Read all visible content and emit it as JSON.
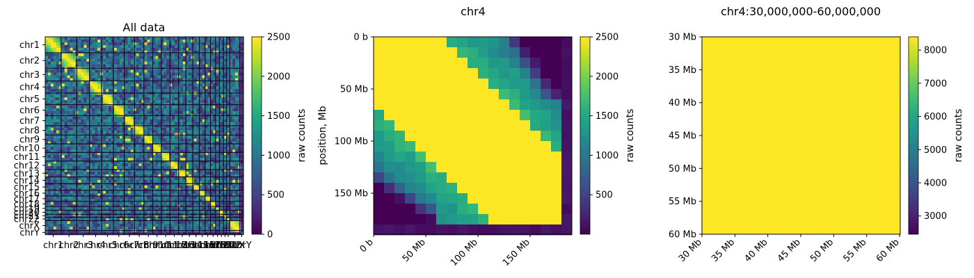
{
  "chart_data": [
    {
      "type": "heatmap",
      "title": "All data",
      "colorbar": {
        "label": "raw counts",
        "ticks": [
          0,
          500,
          1000,
          1500,
          2000,
          2500
        ],
        "range": [
          0,
          2500
        ]
      },
      "chromosomes": [
        "chr1",
        "chr2",
        "chr3",
        "chr4",
        "chr5",
        "chr6",
        "chr7",
        "chr8",
        "chr9",
        "chr10",
        "chr11",
        "chr12",
        "chr13",
        "chr14",
        "chr15",
        "chr16",
        "chr17",
        "chr18",
        "chr19",
        "chr20",
        "chr21",
        "chr22",
        "chrX",
        "chrY"
      ],
      "chrom_sizes_mb": [
        249,
        242,
        198,
        190,
        181,
        171,
        159,
        145,
        138,
        134,
        135,
        133,
        114,
        107,
        102,
        90,
        83,
        80,
        59,
        64,
        47,
        51,
        156,
        57
      ]
    },
    {
      "type": "heatmap",
      "title": "chr4",
      "ylabel": "position, Mb",
      "xticks": [
        "0 b",
        "50 Mb",
        "100 Mb",
        "150 Mb"
      ],
      "yticks": [
        "0 b",
        "50 Mb",
        "100 Mb",
        "150 Mb"
      ],
      "tick_values_mb": [
        0,
        50,
        100,
        150
      ],
      "extent_mb": 190,
      "bins": 19,
      "colorbar": {
        "label": "raw counts",
        "ticks": [
          500,
          1000,
          1500,
          2000,
          2500
        ],
        "range": [
          0,
          2500
        ]
      }
    },
    {
      "type": "heatmap",
      "title": "chr4:30,000,000-60,000,000",
      "xticks": [
        "30 Mb",
        "35 Mb",
        "40 Mb",
        "45 Mb",
        "50 Mb",
        "55 Mb",
        "60 Mb"
      ],
      "yticks": [
        "30 Mb",
        "35 Mb",
        "40 Mb",
        "45 Mb",
        "50 Mb",
        "55 Mb",
        "60 Mb"
      ],
      "range_mb": [
        30,
        60
      ],
      "value": 8400,
      "colorbar": {
        "label": "raw counts",
        "ticks": [
          3000,
          4000,
          5000,
          6000,
          7000,
          8000
        ],
        "range": [
          2450,
          8400
        ]
      }
    }
  ],
  "colors": {
    "viridis": [
      "#440154",
      "#482475",
      "#414487",
      "#355f8d",
      "#2a788e",
      "#21918c",
      "#22a884",
      "#44bf70",
      "#7ad151",
      "#bddf26",
      "#fde725"
    ]
  }
}
